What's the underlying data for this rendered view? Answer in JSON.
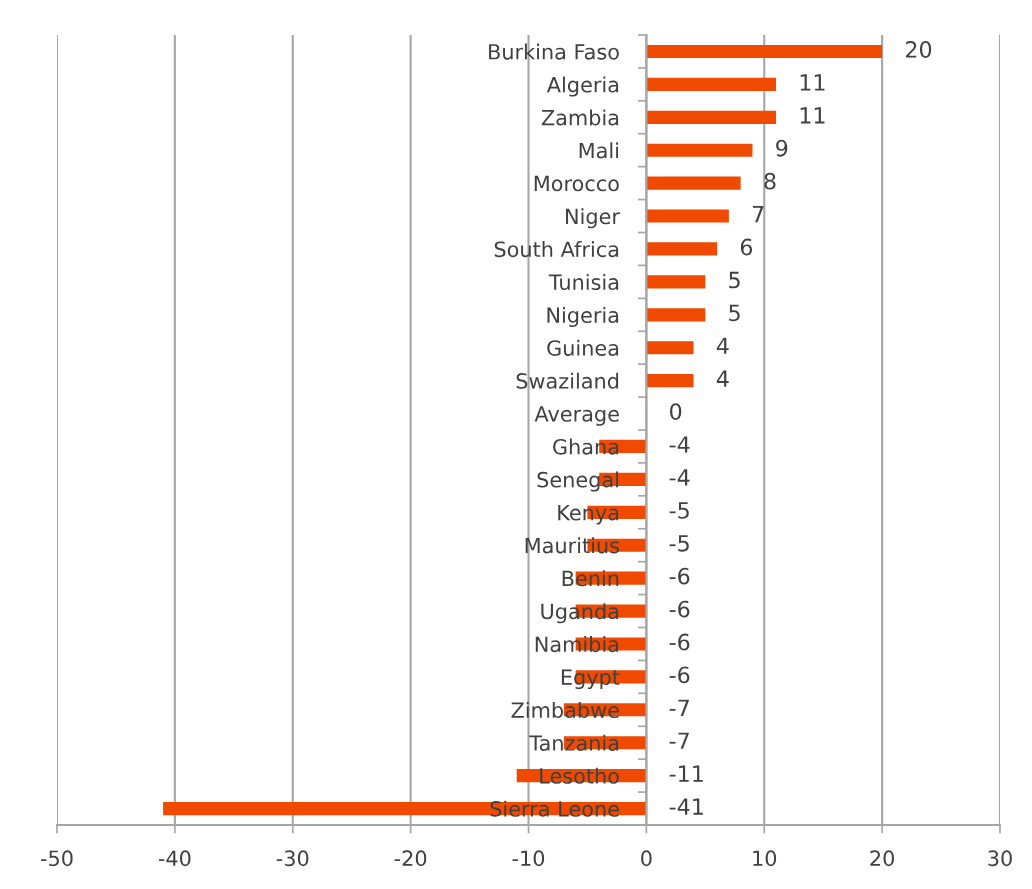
{
  "chart_data": {
    "type": "bar",
    "orientation": "horizontal",
    "categories": [
      "Burkina Faso",
      "Algeria",
      "Zambia",
      "Mali",
      "Morocco",
      "Niger",
      "South Africa",
      "Tunisia",
      "Nigeria",
      "Guinea",
      "Swaziland",
      "Average",
      "Ghana",
      "Senegal",
      "Kenya",
      "Mauritius",
      "Benin",
      "Uganda",
      "Namibia",
      "Egypt",
      "Zimbabwe",
      "Tanzania",
      "Lesotho",
      "Sierra Leone"
    ],
    "values": [
      20,
      11,
      11,
      9,
      8,
      7,
      6,
      5,
      5,
      4,
      4,
      0,
      -4,
      -4,
      -5,
      -5,
      -6,
      -6,
      -6,
      -6,
      -7,
      -7,
      -11,
      -41
    ],
    "color": "#ef4a00",
    "xlim": [
      -50,
      30
    ],
    "xticks": [
      -50,
      -40,
      -30,
      -20,
      -10,
      0,
      10,
      20,
      30
    ],
    "grid": "x",
    "data_labels": true
  }
}
